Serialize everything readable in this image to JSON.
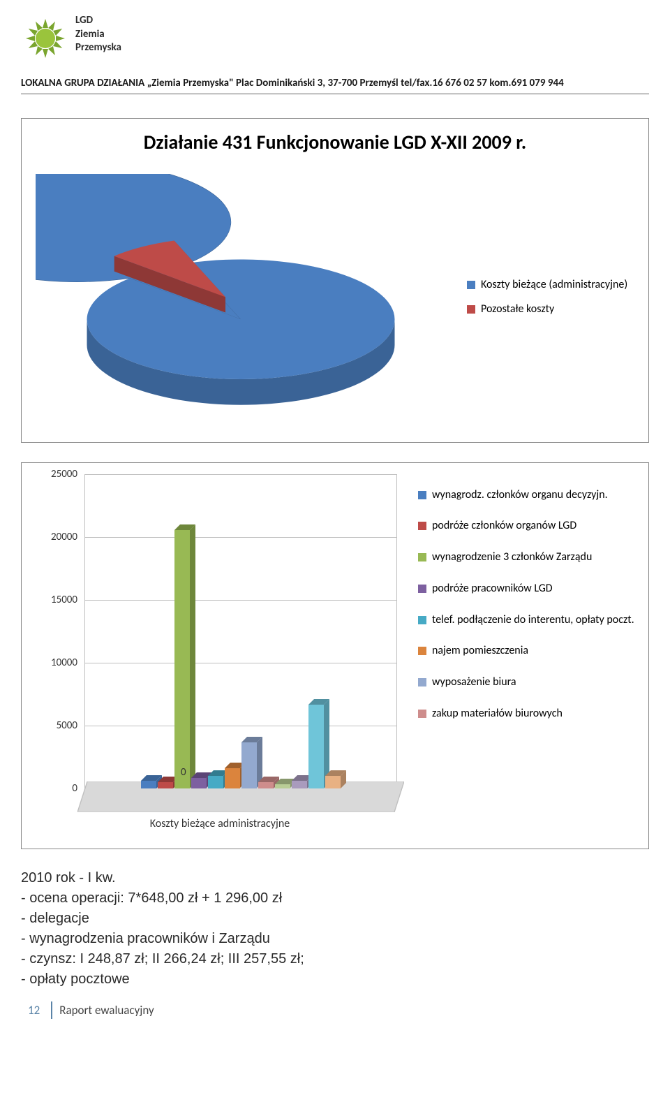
{
  "header": {
    "logo_lines": [
      "LGD",
      "Ziemia",
      "Przemyska"
    ],
    "contact": "LOKALNA GRUPA DZIAŁANIA „Ziemia Przemyska\" Plac Dominikański 3, 37-700 Przemyśl tel/fax.16 676 02 57 kom.691 079 944"
  },
  "pie_chart": {
    "type": "pie",
    "title": "Działanie 431 Funkcjonowanie LGD X-XII 2009 r.",
    "slices": [
      {
        "label": "Koszty bieżące (administracyjne)",
        "value": 88,
        "color": "#4a7ec0"
      },
      {
        "label": "Pozostałe koszty",
        "value": 12,
        "color": "#be4b48"
      }
    ],
    "slice_side_colors": [
      "#3a6396",
      "#8e3836"
    ],
    "background_color": "#ffffff"
  },
  "bar_chart": {
    "type": "bar",
    "x_label": "Koszty bieżące administracyjne",
    "zero_label": "0",
    "ylim": [
      0,
      25000
    ],
    "ytick_step": 5000,
    "yticks": [
      0,
      5000,
      10000,
      15000,
      20000,
      25000
    ],
    "grid_color": "#bfbfbf",
    "background_color": "#ffffff",
    "label_fontsize": 15,
    "series": [
      {
        "label": "wynagrodz. członków organu decyzyjn.",
        "value": 600,
        "color": "#4a7ec0",
        "dark": "#3a6396"
      },
      {
        "label": "podróże członków organów LGD",
        "value": 500,
        "color": "#be4b48",
        "dark": "#8e3836"
      },
      {
        "label": "wynagrodzenie 3 członków Zarządu",
        "value": 21000,
        "color": "#98b954",
        "dark": "#6e873b"
      },
      {
        "label": "podróże pracowników LGD",
        "value": 800,
        "color": "#7d60a0",
        "dark": "#5b4476"
      },
      {
        "label": "telef. podłączenie do interentu, opłaty poczt.",
        "value": 1000,
        "color": "#46aac5",
        "dark": "#327c90"
      },
      {
        "label": "najem pomieszczenia",
        "value": 1600,
        "color": "#db843d",
        "dark": "#a0602c"
      },
      {
        "label": "wyposażenie biura",
        "value": 3700,
        "color": "#93a9cf",
        "dark": "#6b7c99"
      },
      {
        "label": "zakup materiałów biurowych",
        "value": 500,
        "color": "#ce8d8c",
        "dark": "#996766"
      },
      {
        "label": "",
        "value": 300,
        "color": "#b9cd96",
        "dark": "#87976c"
      },
      {
        "label": "",
        "value": 600,
        "color": "#a99bbd",
        "dark": "#7c718b"
      },
      {
        "label": "",
        "value": 6800,
        "color": "#6fc5d9",
        "dark": "#5190a0"
      },
      {
        "label": "",
        "value": 1000,
        "color": "#e8b183",
        "dark": "#ab8260"
      }
    ]
  },
  "body": {
    "lines": [
      "2010 rok - I kw.",
      "- ocena operacji: 7*648,00 zł + 1 296,00 zł",
      "- delegacje",
      "- wynagrodzenia pracowników i Zarządu",
      "- czynsz: I 248,87 zł; II 266,24 zł; III 257,55 zł;",
      "- opłaty pocztowe"
    ]
  },
  "footer": {
    "page_num": "12",
    "label": "Raport ewaluacyjny"
  }
}
